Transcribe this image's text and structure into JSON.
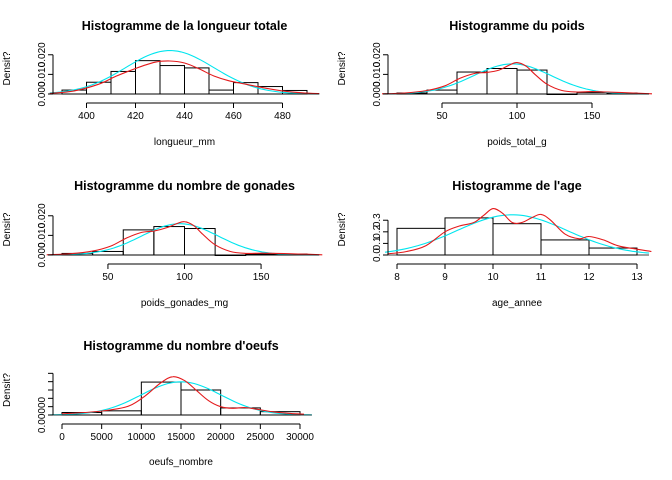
{
  "colors": {
    "bars": "#000000",
    "density_kde": "#e41a1c",
    "density_normal": "#00e5ee"
  },
  "chart_data": [
    {
      "type": "bar",
      "title": "Histogramme de la longueur totale",
      "xlabel": "longueur_mm",
      "ylabel": "Densit?",
      "xlim": [
        390,
        490
      ],
      "ylim": [
        0,
        0.026
      ],
      "xticks": [
        400,
        420,
        440,
        460,
        480
      ],
      "yticks": [
        "0.000",
        "0.010",
        "0.020"
      ],
      "yticks_v": [
        0.0,
        0.01,
        0.02
      ],
      "bins": [
        [
          390,
          400,
          0.002
        ],
        [
          400,
          410,
          0.006
        ],
        [
          410,
          420,
          0.0115
        ],
        [
          420,
          430,
          0.017
        ],
        [
          430,
          440,
          0.0145
        ],
        [
          440,
          450,
          0.0133
        ],
        [
          450,
          460,
          0.002
        ],
        [
          460,
          470,
          0.0058
        ],
        [
          470,
          480,
          0.0038
        ],
        [
          480,
          490,
          0.0018
        ]
      ],
      "kde": {
        "x": [
          385,
          395,
          405,
          412,
          420,
          428,
          434,
          440,
          446,
          452,
          458,
          465,
          472,
          480,
          488,
          495
        ],
        "y": [
          0.0003,
          0.0016,
          0.005,
          0.009,
          0.013,
          0.0162,
          0.0168,
          0.0158,
          0.0128,
          0.0092,
          0.0068,
          0.005,
          0.0032,
          0.0016,
          0.0006,
          0.0002
        ]
      },
      "normal": {
        "mean": 434,
        "sd": 18
      }
    },
    {
      "type": "bar",
      "title": "Histogramme du poids",
      "xlabel": "poids_total_g",
      "ylabel": "Densit?",
      "xlim": [
        20,
        180
      ],
      "ylim": [
        0,
        0.026
      ],
      "xticks": [
        50,
        100,
        150
      ],
      "yticks": [
        "0.000",
        "0.010",
        "0.020"
      ],
      "yticks_v": [
        0.0,
        0.01,
        0.02
      ],
      "bins": [
        [
          20,
          40,
          0.0005
        ],
        [
          40,
          60,
          0.002
        ],
        [
          60,
          80,
          0.0112
        ],
        [
          80,
          100,
          0.013
        ],
        [
          100,
          120,
          0.0122
        ],
        [
          120,
          140,
          0.0
        ],
        [
          140,
          160,
          0.0008
        ],
        [
          160,
          180,
          0.0005
        ]
      ],
      "kde": {
        "x": [
          10,
          25,
          40,
          52,
          62,
          72,
          80,
          88,
          95,
          100,
          106,
          112,
          120,
          130,
          140,
          150,
          160,
          170,
          180,
          190
        ],
        "y": [
          0.0001,
          0.0005,
          0.0018,
          0.0042,
          0.008,
          0.0105,
          0.011,
          0.0122,
          0.0148,
          0.016,
          0.0142,
          0.01,
          0.005,
          0.0018,
          0.001,
          0.0012,
          0.001,
          0.0007,
          0.0004,
          0.0001
        ]
      },
      "normal": {
        "mean": 97,
        "sd": 26
      }
    },
    {
      "type": "bar",
      "title": "Histogramme du nombre de gonades",
      "xlabel": "poids_gonades_mg",
      "ylabel": "Densit?",
      "xlim": [
        20,
        180
      ],
      "ylim": [
        0,
        0.026
      ],
      "xticks": [
        50,
        100,
        150
      ],
      "yticks": [
        "0.000",
        "0.010",
        "0.020"
      ],
      "yticks_v": [
        0.0,
        0.01,
        0.02
      ],
      "bins": [
        [
          20,
          40,
          0.0008
        ],
        [
          40,
          60,
          0.0018
        ],
        [
          60,
          80,
          0.0128
        ],
        [
          80,
          100,
          0.0145
        ],
        [
          100,
          120,
          0.0135
        ],
        [
          120,
          140,
          0.0
        ],
        [
          140,
          160,
          0.0005
        ],
        [
          160,
          180,
          0.0005
        ]
      ],
      "kde": {
        "x": [
          10,
          25,
          40,
          52,
          62,
          72,
          80,
          88,
          95,
          100,
          106,
          112,
          120,
          130,
          140,
          150,
          160,
          170,
          180,
          190
        ],
        "y": [
          0.0001,
          0.0006,
          0.002,
          0.0046,
          0.0086,
          0.0115,
          0.0122,
          0.0138,
          0.016,
          0.017,
          0.015,
          0.0105,
          0.0052,
          0.0018,
          0.0008,
          0.0009,
          0.0008,
          0.0006,
          0.0004,
          0.0001
        ]
      },
      "normal": {
        "mean": 97,
        "sd": 25
      }
    },
    {
      "type": "bar",
      "title": "Histogramme de l'age",
      "xlabel": "age_annee",
      "ylabel": "Densit?",
      "xlim": [
        8,
        13
      ],
      "ylim": [
        0,
        0.44
      ],
      "xticks": [
        8,
        9,
        10,
        11,
        12,
        13
      ],
      "yticks": [
        "0.0",
        "0.1",
        "0.2",
        "0.3"
      ],
      "yticks_v": [
        0.0,
        0.1,
        0.2,
        0.3
      ],
      "bins": [
        [
          8,
          9,
          0.23
        ],
        [
          9,
          10,
          0.32
        ],
        [
          10,
          11,
          0.27
        ],
        [
          11,
          12,
          0.13
        ],
        [
          12,
          13,
          0.06
        ]
      ],
      "kde": {
        "x": [
          7.8,
          8.2,
          8.6,
          9.0,
          9.3,
          9.6,
          9.8,
          10.0,
          10.2,
          10.4,
          10.6,
          10.8,
          11.0,
          11.2,
          11.5,
          11.8,
          12.0,
          12.3,
          12.6,
          13.0,
          13.3
        ],
        "y": [
          0.01,
          0.03,
          0.08,
          0.2,
          0.25,
          0.28,
          0.34,
          0.4,
          0.36,
          0.28,
          0.28,
          0.32,
          0.35,
          0.3,
          0.18,
          0.14,
          0.16,
          0.13,
          0.08,
          0.05,
          0.03
        ]
      },
      "normal": {
        "mean": 10.4,
        "sd": 1.15
      }
    },
    {
      "type": "bar",
      "title": "Histogramme du nombre d'oeufs",
      "xlabel": "oeufs_nombre",
      "ylabel": "Densit?",
      "xlim": [
        0,
        30000
      ],
      "ylim": [
        0,
        0.00012
      ],
      "xticks": [
        0,
        5000,
        10000,
        15000,
        20000,
        25000,
        30000
      ],
      "yticks": [
        "0.00000"
      ],
      "yticks_v": [
        0.0
      ],
      "yticks_minor": [
        0.0,
        2e-05,
        4e-05,
        6e-05,
        8e-05,
        0.0001
      ],
      "bins": [
        [
          0,
          5000,
          6e-06
        ],
        [
          5000,
          10000,
          1e-05
        ],
        [
          10000,
          15000,
          7.9e-05
        ],
        [
          15000,
          20000,
          6e-05
        ],
        [
          20000,
          25000,
          1.7e-05
        ],
        [
          25000,
          30000,
          8e-06
        ]
      ],
      "kde": {
        "x": [
          0,
          3000,
          6000,
          8500,
          10500,
          12500,
          14000,
          15500,
          17000,
          18500,
          20000,
          21500,
          23000,
          24500,
          26500,
          28500,
          30500
        ],
        "y": [
          3e-06,
          6e-06,
          1.2e-05,
          2.2e-05,
          4.6e-05,
          7.8e-05,
          9.2e-05,
          8.2e-05,
          5.8e-05,
          3.4e-05,
          2e-05,
          1.6e-05,
          1.8e-05,
          1.4e-05,
          8e-06,
          4e-06,
          2e-06
        ]
      },
      "normal": {
        "mean": 15000,
        "sd": 5000
      }
    }
  ]
}
